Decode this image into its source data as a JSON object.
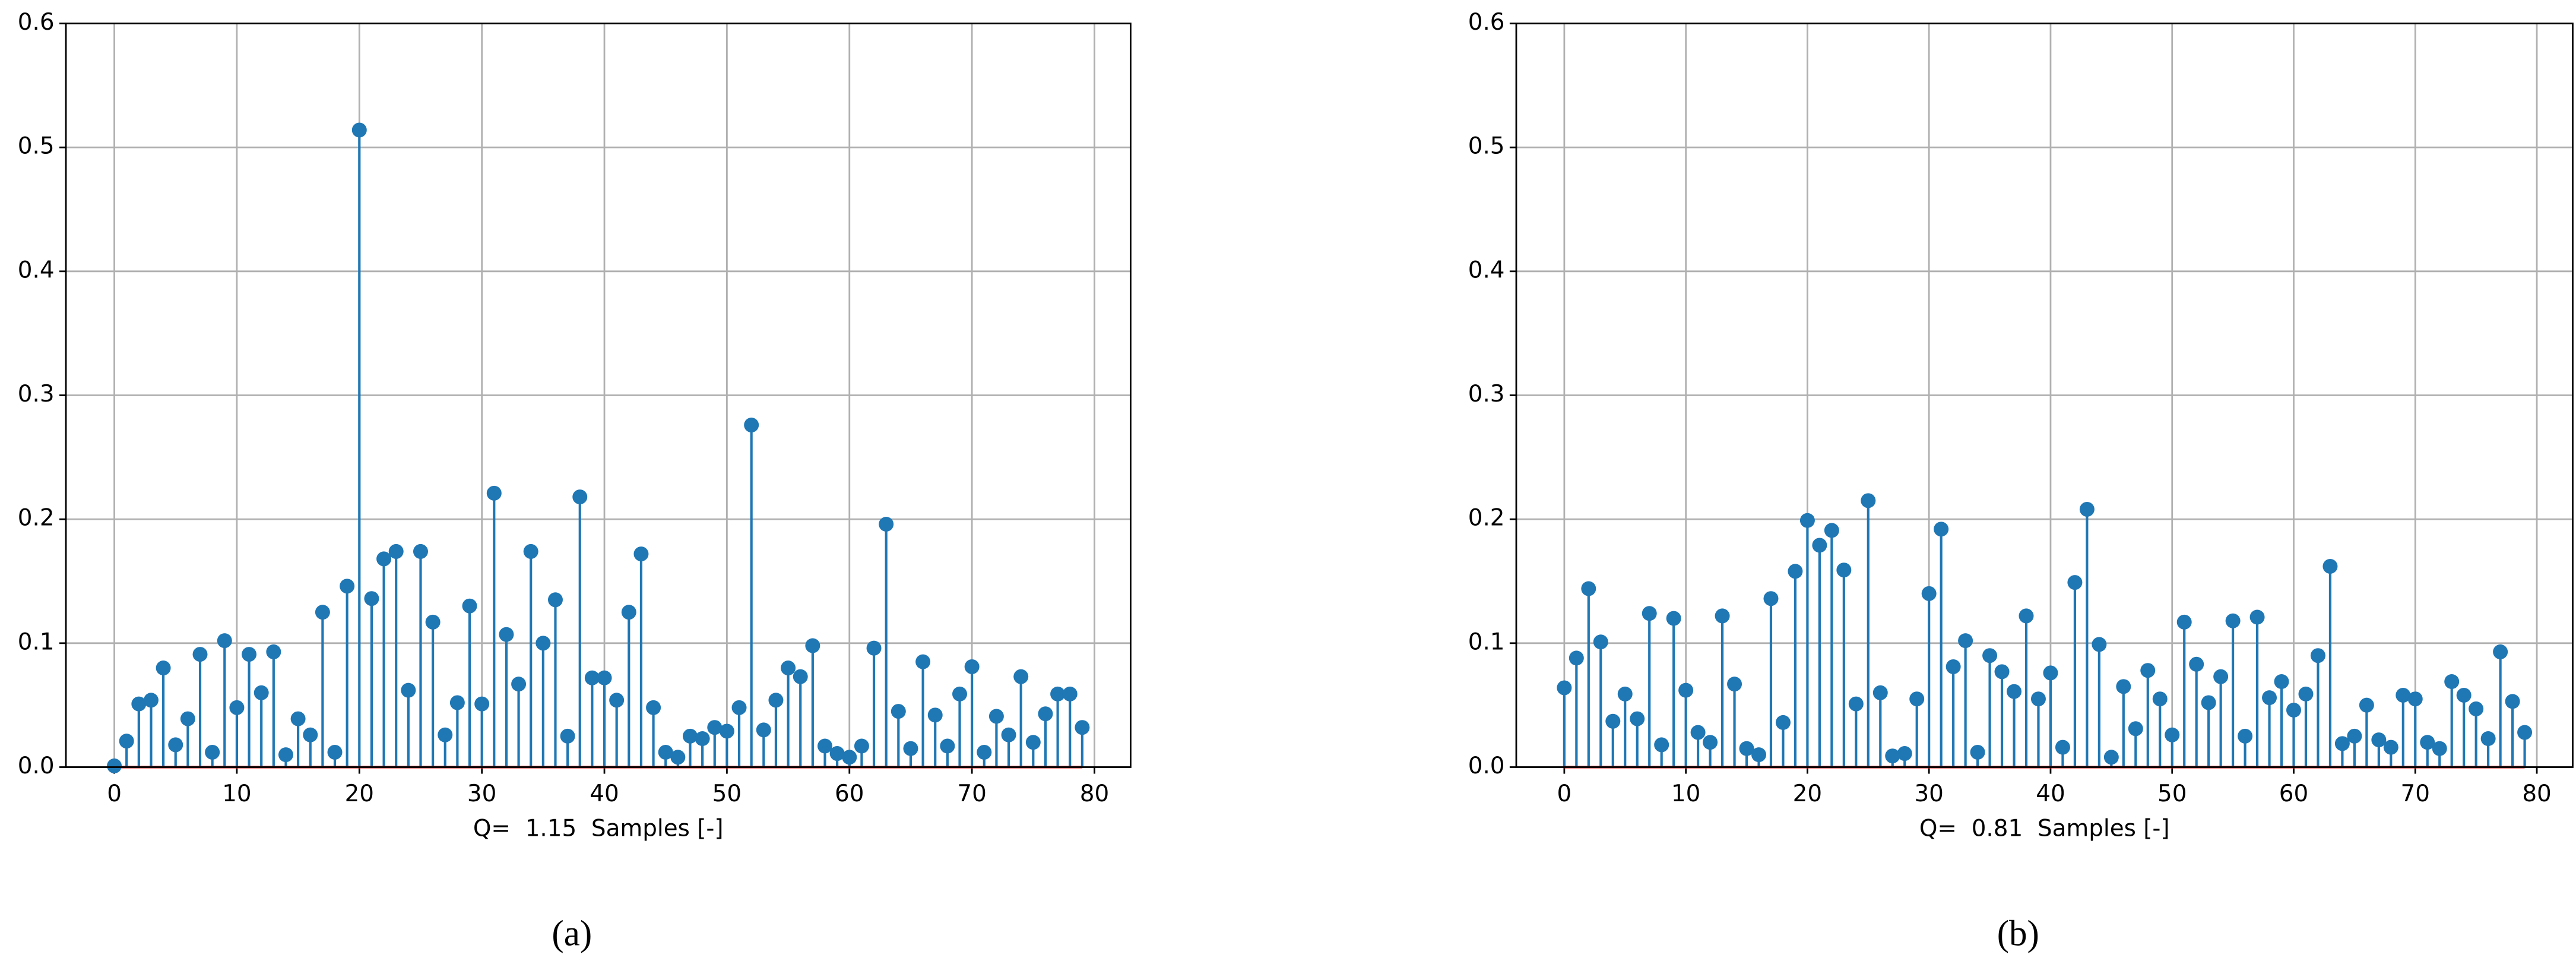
{
  "chart_data": [
    {
      "type": "stem",
      "xlabel": "Q=  1.15  Samples [-]",
      "caption": "(a)",
      "color": "#1f77b4",
      "baseline_color": "#d62728",
      "grid": true,
      "x": [
        0,
        1,
        2,
        3,
        4,
        5,
        6,
        7,
        8,
        9,
        10,
        11,
        12,
        13,
        14,
        15,
        16,
        17,
        18,
        19,
        20,
        21,
        22,
        23,
        24,
        25,
        26,
        27,
        28,
        29,
        30,
        31,
        32,
        33,
        34,
        35,
        36,
        37,
        38,
        39,
        40,
        41,
        42,
        43,
        44,
        45,
        46,
        47,
        48,
        49,
        50,
        51,
        52,
        53,
        54,
        55,
        56,
        57,
        58,
        59,
        60,
        61,
        62,
        63,
        64,
        65,
        66,
        67,
        68,
        69,
        70,
        71,
        72,
        73,
        74,
        75,
        76,
        77,
        78,
        79
      ],
      "values": [
        0.001,
        0.021,
        0.051,
        0.054,
        0.08,
        0.018,
        0.039,
        0.091,
        0.012,
        0.102,
        0.048,
        0.091,
        0.06,
        0.093,
        0.01,
        0.039,
        0.026,
        0.125,
        0.012,
        0.146,
        0.514,
        0.136,
        0.168,
        0.174,
        0.062,
        0.174,
        0.117,
        0.026,
        0.052,
        0.13,
        0.051,
        0.221,
        0.107,
        0.067,
        0.174,
        0.1,
        0.135,
        0.025,
        0.218,
        0.072,
        0.072,
        0.054,
        0.125,
        0.172,
        0.048,
        0.012,
        0.008,
        0.025,
        0.023,
        0.032,
        0.029,
        0.048,
        0.276,
        0.03,
        0.054,
        0.08,
        0.073,
        0.098,
        0.017,
        0.011,
        0.008,
        0.017,
        0.096,
        0.196,
        0.045,
        0.015,
        0.085,
        0.042,
        0.017,
        0.059,
        0.081,
        0.012,
        0.041,
        0.026,
        0.073,
        0.02,
        0.043,
        0.059,
        0.059,
        0.032
      ],
      "xlim": [
        -3.95,
        82.95
      ],
      "xticks": [
        0,
        10,
        20,
        30,
        40,
        50,
        60,
        70,
        80
      ],
      "ylim": [
        0,
        0.6
      ],
      "yticks": [
        {
          "value": 0,
          "label": "0.0"
        },
        0.1,
        0.2,
        0.3,
        0.4,
        0.5,
        0.6
      ]
    },
    {
      "type": "stem",
      "xlabel": "Q=  0.81  Samples [-]",
      "caption": "(b)",
      "color": "#1f77b4",
      "baseline_color": "#d62728",
      "grid": true,
      "x": [
        0,
        1,
        2,
        3,
        4,
        5,
        6,
        7,
        8,
        9,
        10,
        11,
        12,
        13,
        14,
        15,
        16,
        17,
        18,
        19,
        20,
        21,
        22,
        23,
        24,
        25,
        26,
        27,
        28,
        29,
        30,
        31,
        32,
        33,
        34,
        35,
        36,
        37,
        38,
        39,
        40,
        41,
        42,
        43,
        44,
        45,
        46,
        47,
        48,
        49,
        50,
        51,
        52,
        53,
        54,
        55,
        56,
        57,
        58,
        59,
        60,
        61,
        62,
        63,
        64,
        65,
        66,
        67,
        68,
        69,
        70,
        71,
        72,
        73,
        74,
        75,
        76,
        77,
        78,
        79
      ],
      "values": [
        0.064,
        0.088,
        0.144,
        0.101,
        0.037,
        0.059,
        0.039,
        0.124,
        0.018,
        0.12,
        0.062,
        0.028,
        0.02,
        0.122,
        0.067,
        0.015,
        0.01,
        0.136,
        0.036,
        0.158,
        0.199,
        0.179,
        0.191,
        0.159,
        0.051,
        0.215,
        0.06,
        0.009,
        0.011,
        0.055,
        0.14,
        0.192,
        0.081,
        0.102,
        0.012,
        0.09,
        0.077,
        0.061,
        0.122,
        0.055,
        0.076,
        0.016,
        0.149,
        0.208,
        0.099,
        0.008,
        0.065,
        0.031,
        0.078,
        0.055,
        0.026,
        0.117,
        0.083,
        0.052,
        0.073,
        0.118,
        0.025,
        0.121,
        0.056,
        0.069,
        0.046,
        0.059,
        0.09,
        0.162,
        0.019,
        0.025,
        0.05,
        0.022,
        0.016,
        0.058,
        0.055,
        0.02,
        0.015,
        0.069,
        0.058,
        0.047,
        0.023,
        0.093,
        0.053,
        0.028
      ],
      "xlim": [
        -3.95,
        82.95
      ],
      "xticks": [
        0,
        10,
        20,
        30,
        40,
        50,
        60,
        70,
        80
      ],
      "ylim": [
        0,
        0.6
      ],
      "yticks": [
        {
          "value": 0,
          "label": "0.0"
        },
        0.1,
        0.2,
        0.3,
        0.4,
        0.5,
        0.6
      ]
    }
  ]
}
